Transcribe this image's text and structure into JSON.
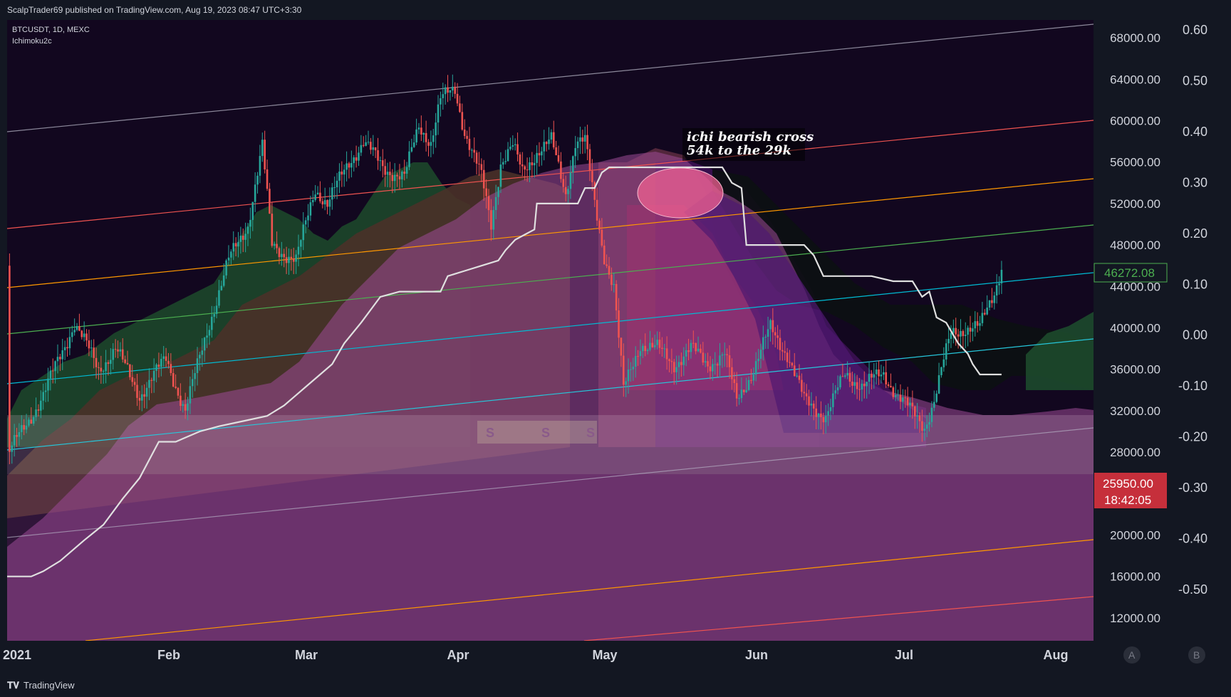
{
  "header": {
    "published": "ScalpTrader69 published on TradingView.com, Aug 19, 2023 08:47 UTC+3:30"
  },
  "chart_info": {
    "symbol": "BTCUSDT, 1D, MEXC",
    "indicator": "Ichimoku2c"
  },
  "annotation": {
    "line1": "ichi bearish cross",
    "line2": "54k to the 29k"
  },
  "footer": {
    "brand": "TradingView",
    "scale_a": "A",
    "scale_b": "B"
  },
  "colors": {
    "background": "#12071f",
    "up": "#26a69a",
    "down": "#ef5350",
    "baseline": "#e0e0e0",
    "cloud": "#9c4b96"
  },
  "chart_data": {
    "type": "candlestick",
    "title": "BTCUSDT, 1D, MEXC",
    "x_ticks": [
      "2021",
      "Feb",
      "Mar",
      "Apr",
      "May",
      "Jun",
      "Jul",
      "Aug"
    ],
    "y_ticks_price": [
      "68000.00",
      "64000.00",
      "60000.00",
      "56000.00",
      "52000.00",
      "48000.00",
      "44000.00",
      "40000.00",
      "36000.00",
      "32000.00",
      "28000.00",
      "20000.00",
      "16000.00",
      "12000.00"
    ],
    "y_ticks_oscillator": [
      "0.60",
      "0.50",
      "0.40",
      "0.30",
      "0.20",
      "0.10",
      "0.00",
      "-0.10",
      "-0.20",
      "-0.30",
      "-0.40",
      "-0.50"
    ],
    "ylim_price": [
      11000,
      70000
    ],
    "last_price_label": "46272.08",
    "current_price_label": "25950.00",
    "countdown_label": "18:42:05",
    "markers": [
      "S",
      "S",
      "S"
    ],
    "grid": false,
    "price_path": [
      [
        1,
        28000
      ],
      [
        15,
        33500
      ],
      [
        28,
        40500
      ],
      [
        38,
        36000
      ],
      [
        45,
        38000
      ],
      [
        55,
        33500
      ],
      [
        66,
        37000
      ],
      [
        74,
        32000
      ],
      [
        84,
        40500
      ],
      [
        92,
        46500
      ],
      [
        100,
        50000
      ],
      [
        106,
        57500
      ],
      [
        110,
        48000
      ],
      [
        120,
        46500
      ],
      [
        128,
        53500
      ],
      [
        133,
        52000
      ],
      [
        142,
        56000
      ],
      [
        148,
        58000
      ],
      [
        156,
        55500
      ],
      [
        165,
        54500
      ],
      [
        171,
        59500
      ],
      [
        176,
        58000
      ],
      [
        180,
        62000
      ],
      [
        186,
        63000
      ],
      [
        190,
        59000
      ],
      [
        197,
        54500
      ],
      [
        201,
        50000
      ],
      [
        205,
        56000
      ],
      [
        210,
        57500
      ],
      [
        214,
        55000
      ],
      [
        220,
        57000
      ],
      [
        226,
        58000
      ],
      [
        232,
        53000
      ],
      [
        236,
        58000
      ],
      [
        240,
        58000
      ],
      [
        244,
        52000
      ],
      [
        248,
        47000
      ],
      [
        252,
        44000
      ],
      [
        256,
        34000
      ],
      [
        263,
        38500
      ],
      [
        270,
        38000
      ],
      [
        277,
        36500
      ],
      [
        284,
        38000
      ],
      [
        291,
        36500
      ],
      [
        298,
        37500
      ],
      [
        303,
        33000
      ],
      [
        310,
        36000
      ],
      [
        317,
        40000
      ],
      [
        324,
        37500
      ],
      [
        331,
        33000
      ],
      [
        340,
        31500
      ],
      [
        348,
        35500
      ],
      [
        355,
        34500
      ],
      [
        364,
        35500
      ],
      [
        370,
        33500
      ],
      [
        377,
        31500
      ],
      [
        381,
        30500
      ],
      [
        385,
        33000
      ],
      [
        392,
        39500
      ],
      [
        398,
        40000
      ],
      [
        404,
        40000
      ],
      [
        410,
        43500
      ],
      [
        413,
        46000
      ]
    ],
    "base_line": [
      [
        0,
        16000
      ],
      [
        10,
        16000
      ],
      [
        15,
        16500
      ],
      [
        22,
        17500
      ],
      [
        32,
        19500
      ],
      [
        40,
        21000
      ],
      [
        48,
        23500
      ],
      [
        55,
        25500
      ],
      [
        63,
        29000
      ],
      [
        70,
        29000
      ],
      [
        80,
        30000
      ],
      [
        88,
        30500
      ],
      [
        98,
        31000
      ],
      [
        108,
        31500
      ],
      [
        115,
        32500
      ],
      [
        120,
        33500
      ],
      [
        125,
        34500
      ],
      [
        130,
        35500
      ],
      [
        135,
        36500
      ],
      [
        140,
        38500
      ],
      [
        147,
        40500
      ],
      [
        155,
        43000
      ],
      [
        163,
        43500
      ],
      [
        180,
        43500
      ],
      [
        183,
        45000
      ],
      [
        190,
        45500
      ],
      [
        197,
        46000
      ],
      [
        204,
        46500
      ],
      [
        207,
        47500
      ],
      [
        211,
        48500
      ],
      [
        215,
        49000
      ],
      [
        219,
        49500
      ],
      [
        220,
        52000
      ],
      [
        237,
        52000
      ],
      [
        240,
        53500
      ],
      [
        244,
        53500
      ],
      [
        247,
        55000
      ],
      [
        250,
        55500
      ],
      [
        262,
        55500
      ],
      [
        267,
        55500
      ],
      [
        275,
        55500
      ],
      [
        285,
        55500
      ],
      [
        292,
        55500
      ],
      [
        297,
        55500
      ],
      [
        301,
        54000
      ],
      [
        305,
        53500
      ],
      [
        307,
        48000
      ],
      [
        322,
        48000
      ],
      [
        331,
        48000
      ],
      [
        335,
        47000
      ],
      [
        339,
        45000
      ],
      [
        346,
        45000
      ],
      [
        359,
        45000
      ],
      [
        368,
        44500
      ],
      [
        376,
        44500
      ],
      [
        380,
        43000
      ],
      [
        383,
        43500
      ],
      [
        386,
        41000
      ],
      [
        390,
        40500
      ],
      [
        395,
        38500
      ],
      [
        399,
        37500
      ],
      [
        401,
        36500
      ],
      [
        404,
        35500
      ],
      [
        410,
        35500
      ],
      [
        413,
        35500
      ]
    ]
  }
}
